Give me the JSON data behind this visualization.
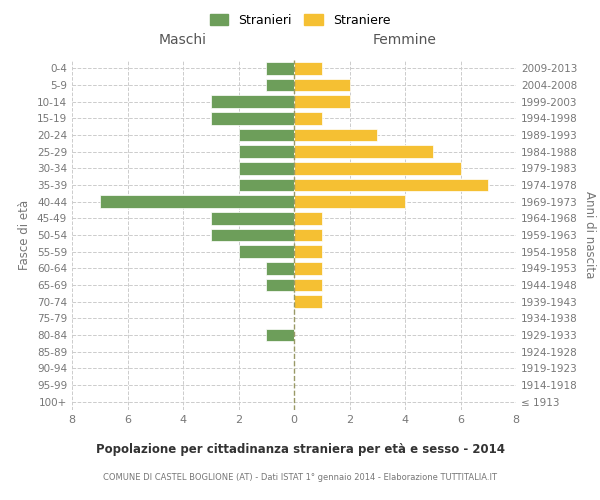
{
  "age_groups": [
    "100+",
    "95-99",
    "90-94",
    "85-89",
    "80-84",
    "75-79",
    "70-74",
    "65-69",
    "60-64",
    "55-59",
    "50-54",
    "45-49",
    "40-44",
    "35-39",
    "30-34",
    "25-29",
    "20-24",
    "15-19",
    "10-14",
    "5-9",
    "0-4"
  ],
  "birth_years": [
    "≤ 1913",
    "1914-1918",
    "1919-1923",
    "1924-1928",
    "1929-1933",
    "1934-1938",
    "1939-1943",
    "1944-1948",
    "1949-1953",
    "1954-1958",
    "1959-1963",
    "1964-1968",
    "1969-1973",
    "1974-1978",
    "1979-1983",
    "1984-1988",
    "1989-1993",
    "1994-1998",
    "1999-2003",
    "2004-2008",
    "2009-2013"
  ],
  "maschi": [
    0,
    0,
    0,
    0,
    1,
    0,
    0,
    1,
    1,
    2,
    3,
    3,
    7,
    2,
    2,
    2,
    2,
    3,
    3,
    1,
    1
  ],
  "femmine": [
    0,
    0,
    0,
    0,
    0,
    0,
    1,
    1,
    1,
    1,
    1,
    1,
    4,
    7,
    6,
    5,
    3,
    1,
    2,
    2,
    1
  ],
  "maschi_color": "#6d9e5a",
  "femmine_color": "#f5c033",
  "title": "Popolazione per cittadinanza straniera per età e sesso - 2014",
  "subtitle": "COMUNE DI CASTEL BOGLIONE (AT) - Dati ISTAT 1° gennaio 2014 - Elaborazione TUTTITALIA.IT",
  "legend_maschi": "Stranieri",
  "legend_femmine": "Straniere",
  "label_maschi": "Maschi",
  "label_femmine": "Femmine",
  "ylabel_left": "Fasce di età",
  "ylabel_right": "Anni di nascita",
  "xlim": 8,
  "background_color": "#ffffff",
  "grid_color": "#cccccc"
}
